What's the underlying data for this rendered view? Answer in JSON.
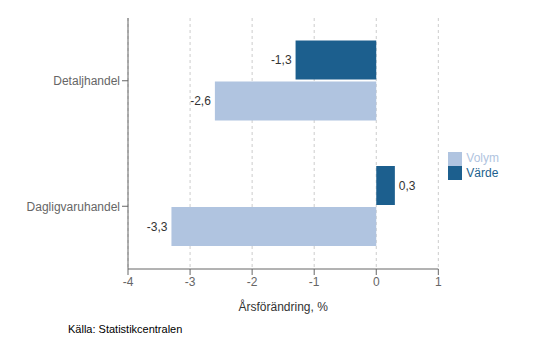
{
  "chart_data": {
    "type": "bar",
    "orientation": "horizontal",
    "categories": [
      "Dagligvaruhandel",
      "Detaljhandel"
    ],
    "series": [
      {
        "name": "Värde",
        "color": "#1c5f8e",
        "values": [
          0.3,
          -1.3
        ],
        "value_labels": [
          "0,3",
          "-1,3"
        ]
      },
      {
        "name": "Volym",
        "color": "#b0c4e0",
        "values": [
          -3.3,
          -2.6
        ],
        "value_labels": [
          "-3,3",
          "-2,6"
        ]
      }
    ],
    "xlabel": "Årsförändring, %",
    "xlim": [
      -4,
      1
    ],
    "xticks": [
      -4,
      -3,
      -2,
      -1,
      0,
      1
    ],
    "grid": true,
    "legend": "right",
    "data_labels": true,
    "annotations": [
      "Källa: Statistikcentralen"
    ]
  }
}
